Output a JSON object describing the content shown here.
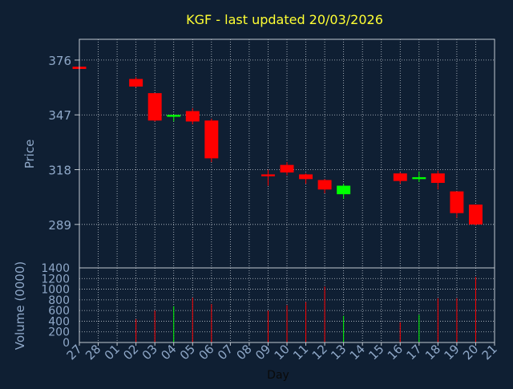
{
  "title": "KGF - last updated 20/03/2026",
  "colors": {
    "background": "#0f1f33",
    "title": "#ffff33",
    "axis_text": "#8fa8c8",
    "frame": "#c0c8d0",
    "grid": "#c0c8d0",
    "down": "#ff0000",
    "up": "#00ff00",
    "volume_neutral": "#2a4060"
  },
  "chart_data": [
    {
      "type": "candlestick",
      "title": "KGF - last updated 20/03/2026",
      "ylabel": "Price",
      "ylim": [
        266,
        387
      ],
      "yticks": [
        289,
        318,
        347,
        376
      ],
      "x_tick_labels": [
        "27",
        "28",
        "01",
        "02",
        "03",
        "04",
        "05",
        "06",
        "07",
        "08",
        "09",
        "10",
        "11",
        "12",
        "13",
        "14",
        "15",
        "16",
        "17",
        "18",
        "19",
        "20",
        "21"
      ],
      "grid": true,
      "candles": [
        {
          "day": "27",
          "open": 372.5,
          "high": 372.5,
          "low": 371.3,
          "close": 371.3
        },
        {
          "day": "02",
          "open": 366.0,
          "high": 367.0,
          "low": 361.5,
          "close": 362.0
        },
        {
          "day": "03",
          "open": 358.5,
          "high": 358.5,
          "low": 343.5,
          "close": 344.0
        },
        {
          "day": "04",
          "open": 346.0,
          "high": 347.0,
          "low": 343.5,
          "close": 347.0
        },
        {
          "day": "05",
          "open": 349.0,
          "high": 350.5,
          "low": 342.0,
          "close": 343.5
        },
        {
          "day": "06",
          "open": 344.0,
          "high": 345.0,
          "low": 322.0,
          "close": 324.0
        },
        {
          "day": "09",
          "open": 315.5,
          "high": 318.0,
          "low": 309.5,
          "close": 314.5
        },
        {
          "day": "10",
          "open": 320.5,
          "high": 322.0,
          "low": 315.0,
          "close": 316.5
        },
        {
          "day": "11",
          "open": 315.5,
          "high": 316.0,
          "low": 310.5,
          "close": 313.0
        },
        {
          "day": "12",
          "open": 312.5,
          "high": 313.0,
          "low": 305.5,
          "close": 307.5
        },
        {
          "day": "13",
          "open": 305.0,
          "high": 310.5,
          "low": 302.5,
          "close": 309.5
        },
        {
          "day": "16",
          "open": 316.0,
          "high": 316.5,
          "low": 310.5,
          "close": 312.0
        },
        {
          "day": "17",
          "open": 313.0,
          "high": 317.0,
          "low": 311.5,
          "close": 314.0
        },
        {
          "day": "18",
          "open": 316.0,
          "high": 317.5,
          "low": 307.5,
          "close": 311.0
        },
        {
          "day": "19",
          "open": 306.5,
          "high": 306.5,
          "low": 292.5,
          "close": 295.0
        },
        {
          "day": "20",
          "open": 299.5,
          "high": 299.5,
          "low": 288.5,
          "close": 289.0
        }
      ]
    },
    {
      "type": "bar",
      "ylabel": "Volume (0000)",
      "xlabel": "Day",
      "ylim": [
        0,
        1400
      ],
      "yticks": [
        0,
        200,
        400,
        600,
        800,
        1000,
        1200,
        1400
      ],
      "x_tick_labels": [
        "27",
        "28",
        "01",
        "02",
        "03",
        "04",
        "05",
        "06",
        "07",
        "08",
        "09",
        "10",
        "11",
        "12",
        "13",
        "14",
        "15",
        "16",
        "17",
        "18",
        "19",
        "20",
        "21"
      ],
      "grid": true,
      "bars": [
        {
          "day": "27",
          "value": 60,
          "direction": "neutral"
        },
        {
          "day": "02",
          "value": 440,
          "direction": "down"
        },
        {
          "day": "03",
          "value": 600,
          "direction": "down"
        },
        {
          "day": "04",
          "value": 680,
          "direction": "up"
        },
        {
          "day": "05",
          "value": 840,
          "direction": "down"
        },
        {
          "day": "06",
          "value": 720,
          "direction": "down"
        },
        {
          "day": "09",
          "value": 600,
          "direction": "down"
        },
        {
          "day": "10",
          "value": 700,
          "direction": "down"
        },
        {
          "day": "11",
          "value": 760,
          "direction": "down"
        },
        {
          "day": "12",
          "value": 1050,
          "direction": "down"
        },
        {
          "day": "13",
          "value": 500,
          "direction": "up"
        },
        {
          "day": "16",
          "value": 380,
          "direction": "down"
        },
        {
          "day": "17",
          "value": 520,
          "direction": "up"
        },
        {
          "day": "18",
          "value": 830,
          "direction": "down"
        },
        {
          "day": "19",
          "value": 830,
          "direction": "down"
        },
        {
          "day": "20",
          "value": 1230,
          "direction": "down"
        }
      ]
    }
  ]
}
